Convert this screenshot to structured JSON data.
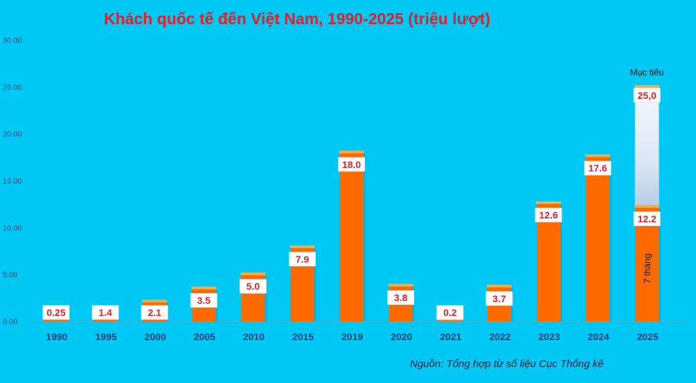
{
  "title": "Khách quốc tế đến Việt Nam, 1990-2025 (triệu lượt)",
  "source": "Nguồn: Tổng hợp từ số liệu Cục Thống kê",
  "colors": {
    "background": "#00C8F5",
    "bar": "#FF6A00",
    "bar_cap": "#E8B055",
    "title": "#E0202A",
    "label_text": "#E0202A",
    "target_fill": "#DCEAF8"
  },
  "chart_data": {
    "type": "bar",
    "categories": [
      "1990",
      "1995",
      "2000",
      "2005",
      "2010",
      "2015",
      "2019",
      "2020",
      "2021",
      "2022",
      "2023",
      "2024",
      "2025"
    ],
    "values": [
      0.25,
      1.4,
      2.1,
      3.5,
      5.0,
      7.9,
      18.0,
      3.8,
      0.2,
      3.7,
      12.6,
      17.6,
      12.2
    ],
    "value_labels": [
      "0.25",
      "1.4",
      "2.1",
      "3.5",
      "5.0",
      "7.9",
      "18.0",
      "3.8",
      "0.2",
      "3.7",
      "12.6",
      "17.6",
      "12.2"
    ],
    "ylim": [
      0,
      30
    ],
    "yticks": [
      "0.00",
      "5.00",
      "10.00",
      "15.00",
      "20.00",
      "25.00",
      "30.00"
    ],
    "grid": false,
    "legend": "none",
    "target": {
      "category": "2025",
      "value": 25.0,
      "label": "25,0",
      "caption": "Mục tiêu"
    },
    "annotation": {
      "category": "2025",
      "text": "7 tháng"
    }
  }
}
